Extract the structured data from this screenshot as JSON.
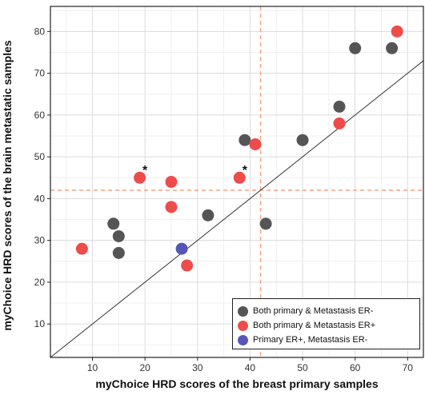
{
  "chart_data": {
    "type": "scatter",
    "xlabel": "myChoice HRD scores of the breast primary samples",
    "ylabel": "myChoice HRD scores of the brain metastatic samples",
    "xlim": [
      2,
      73
    ],
    "ylim": [
      2,
      86
    ],
    "xticks": [
      10,
      20,
      30,
      40,
      50,
      60,
      70
    ],
    "yticks": [
      10,
      20,
      30,
      40,
      50,
      60,
      70,
      80
    ],
    "grid": true,
    "reference_lines": {
      "diagonal": "y = x",
      "vertical_x": 42,
      "horizontal_y": 42
    },
    "legend_position": "bottom-right",
    "series": [
      {
        "name": "Both primary & Metastasis ER-",
        "color": "#555555",
        "points": [
          [
            14,
            34
          ],
          [
            15,
            31
          ],
          [
            15,
            27
          ],
          [
            32,
            36
          ],
          [
            39,
            54
          ],
          [
            43,
            34
          ],
          [
            50,
            54
          ],
          [
            57,
            62
          ],
          [
            60,
            76
          ],
          [
            67,
            76
          ]
        ]
      },
      {
        "name": "Both primary & Metastasis ER+",
        "color": "#ee4b4b",
        "points": [
          [
            8,
            28
          ],
          [
            19,
            45
          ],
          [
            25,
            44
          ],
          [
            25,
            38
          ],
          [
            28,
            24
          ],
          [
            38,
            45
          ],
          [
            41,
            53
          ],
          [
            57,
            58
          ],
          [
            68,
            80
          ]
        ]
      },
      {
        "name": "Primary ER+, Metastasis ER-",
        "color": "#5557b8",
        "points": [
          [
            27,
            28
          ]
        ]
      }
    ],
    "annotations": [
      {
        "text": "*",
        "x": 20,
        "y": 47
      },
      {
        "text": "*",
        "x": 39,
        "y": 47
      }
    ]
  }
}
